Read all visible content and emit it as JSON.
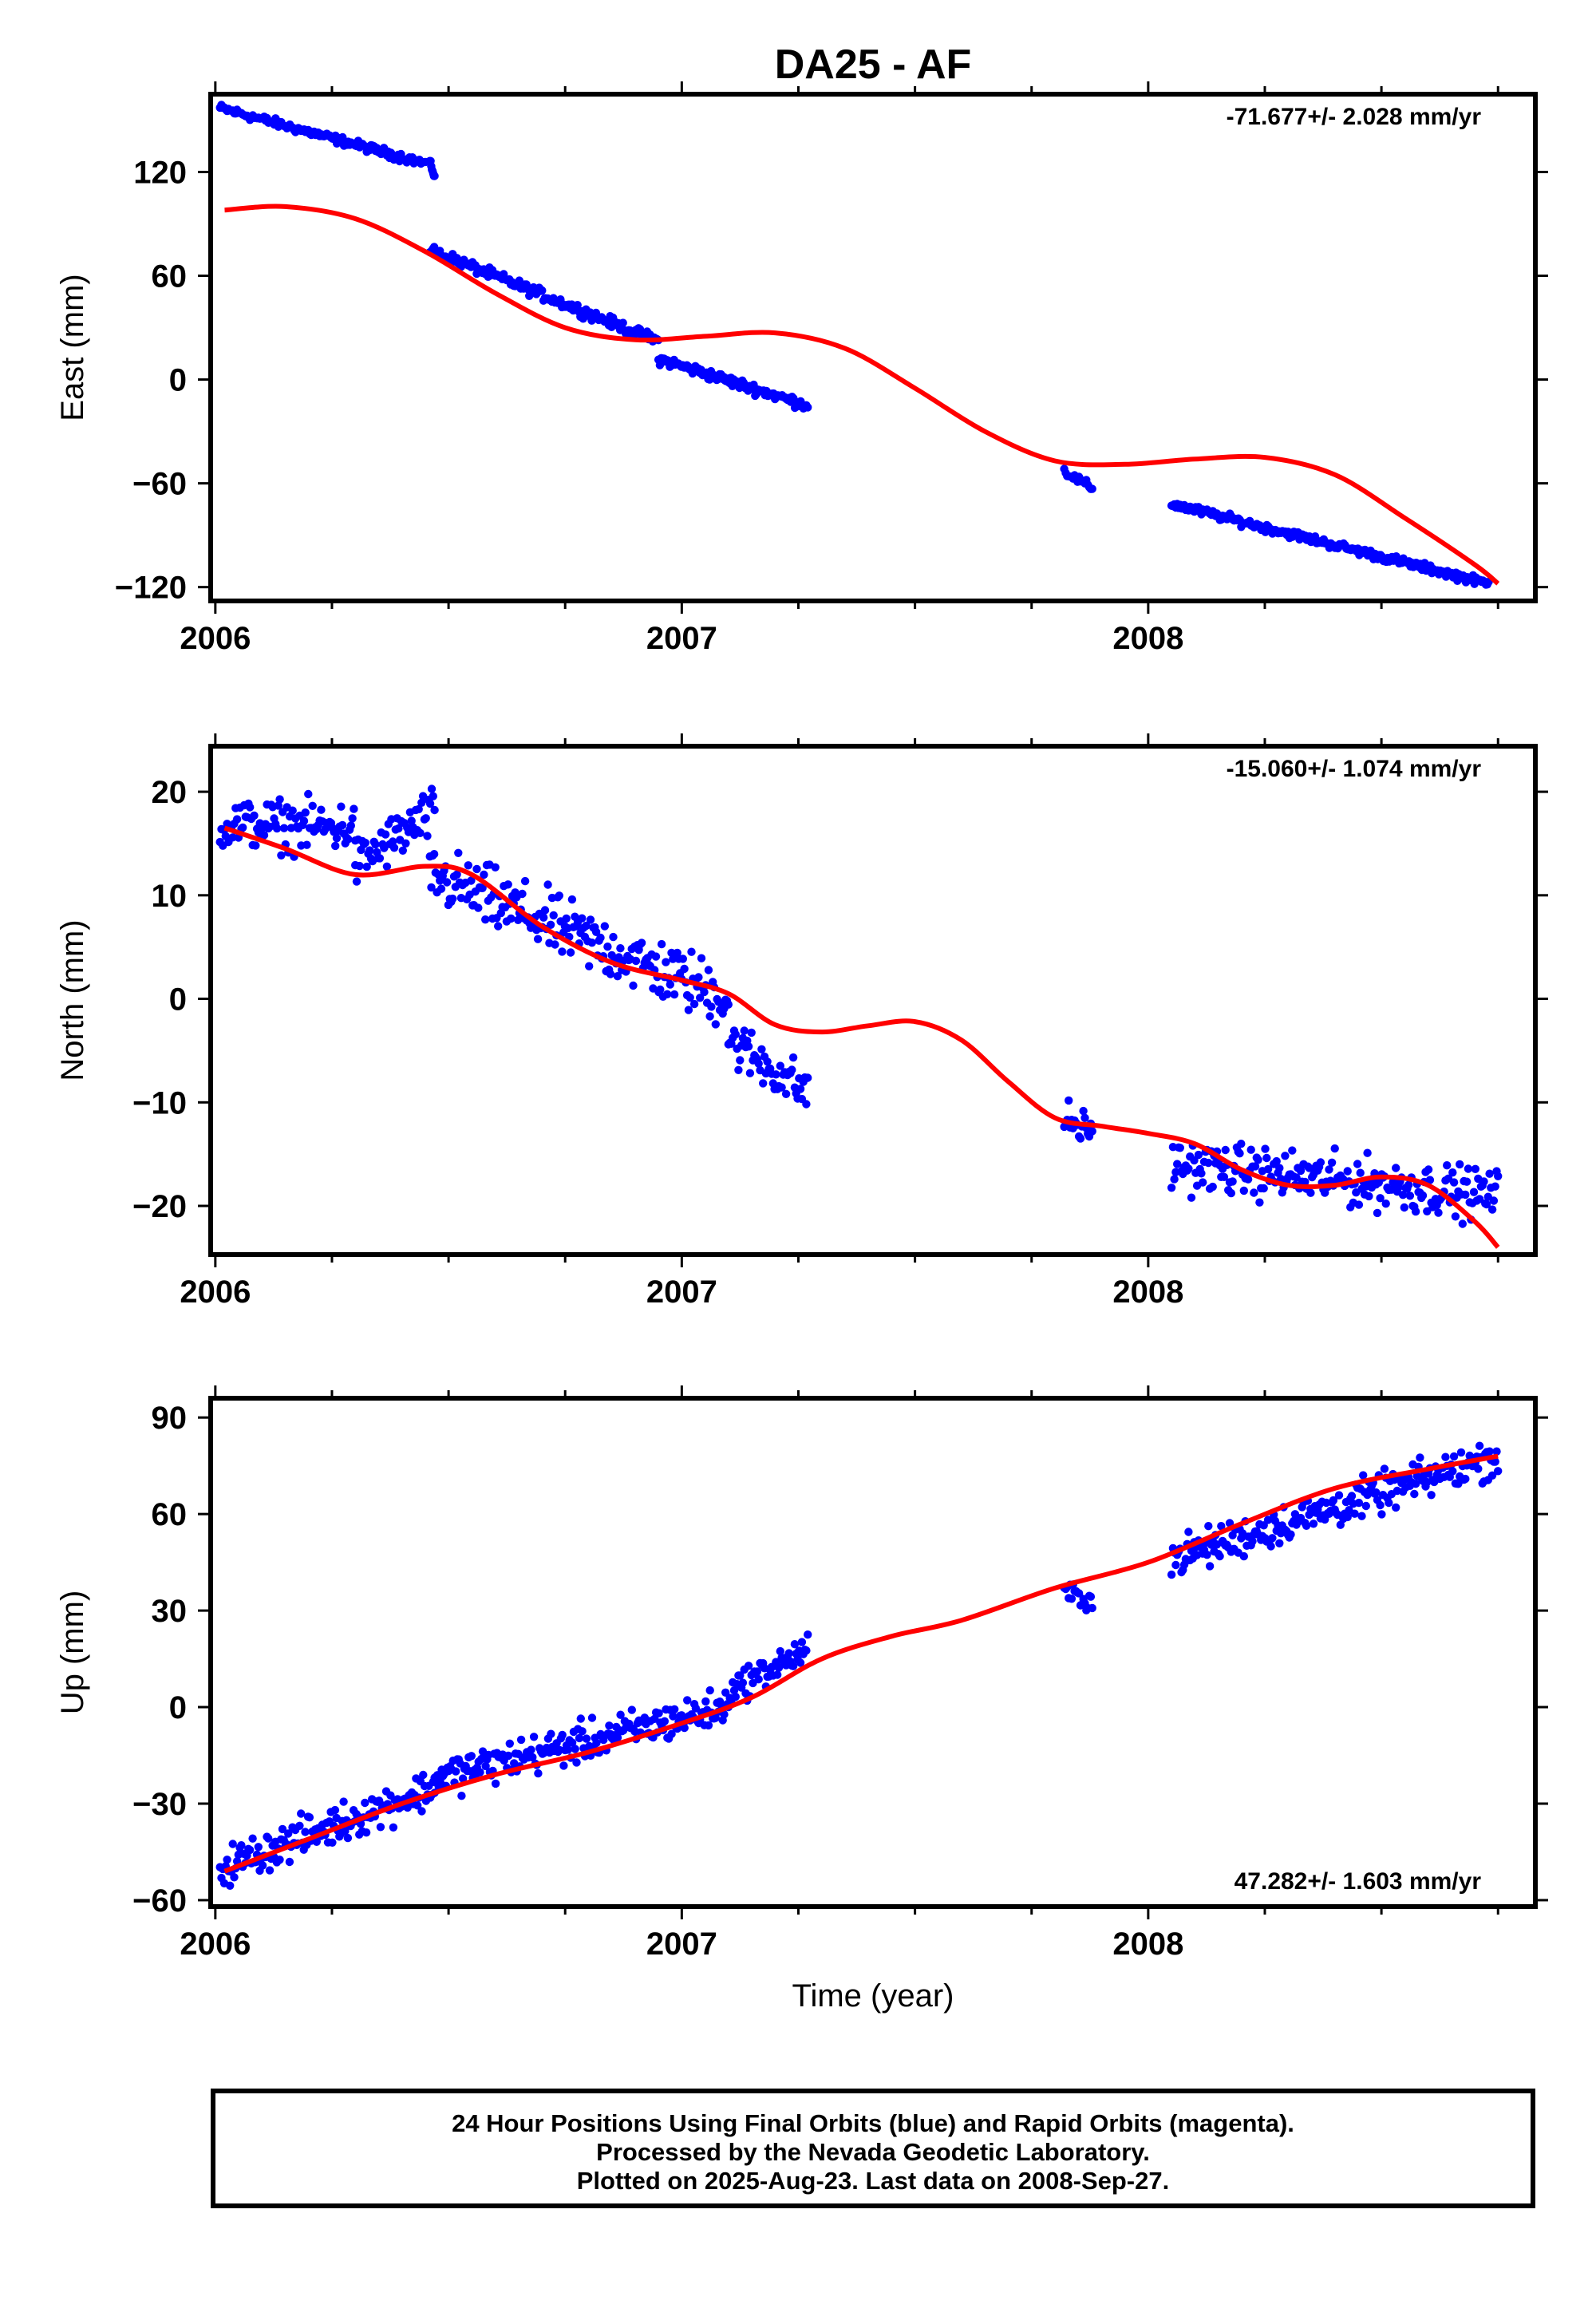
{
  "chart_data": {
    "title": "DA25 - AF",
    "type": "scatter",
    "x_ticks": [
      "2006",
      "2007",
      "2008"
    ],
    "xlabel": "Time (year)",
    "xlim": [
      2005.99,
      2008.83
    ],
    "colors": {
      "points": "#0000ff",
      "fit": "#ff0000"
    },
    "panels": [
      {
        "id": "east",
        "ylabel": "East (mm)",
        "ylim": [
          -128,
          165
        ],
        "yticks": [
          120,
          60,
          0,
          -60,
          -120
        ],
        "ytick_labels": [
          "120",
          "60",
          "0",
          "−60",
          "−120"
        ],
        "rate_text": "-71.677+/- 2.028 mm/yr",
        "rate_position": "top-right",
        "point_segments": [
          {
            "x": [
              2006.01,
              2006.45
            ],
            "y": [
              157,
              125
            ],
            "noise": 2
          },
          {
            "x": [
              2006.46,
              2006.47
            ],
            "y": [
              126,
              117
            ],
            "noise": 1
          },
          {
            "x": [
              2006.46,
              2006.95
            ],
            "y": [
              75,
              22
            ],
            "noise": 2.5
          },
          {
            "x": [
              2006.95,
              2007.27
            ],
            "y": [
              12,
              -15
            ],
            "noise": 2.5
          },
          {
            "x": [
              2007.82,
              2007.88
            ],
            "y": [
              -53,
              -63
            ],
            "noise": 2
          },
          {
            "x": [
              2008.05,
              2008.73
            ],
            "y": [
              -72,
              -118
            ],
            "noise": 2
          }
        ],
        "fit": {
          "x": [
            2006.02,
            2006.15,
            2006.3,
            2006.45,
            2006.6,
            2006.75,
            2006.9,
            2007.05,
            2007.2,
            2007.35,
            2007.5,
            2007.65,
            2007.8,
            2007.95,
            2008.1,
            2008.25,
            2008.4,
            2008.55,
            2008.7,
            2008.75
          ],
          "y": [
            98,
            100,
            93,
            74,
            50,
            30,
            23,
            25,
            27,
            18,
            -5,
            -30,
            -47,
            -49,
            -46,
            -45,
            -55,
            -80,
            -107,
            -118
          ]
        }
      },
      {
        "id": "north",
        "ylabel": "North (mm)",
        "ylim": [
          -24.7,
          24.4
        ],
        "yticks": [
          20,
          10,
          0,
          -10,
          -20
        ],
        "ytick_labels": [
          "20",
          "10",
          "0",
          "−10",
          "−20"
        ],
        "rate_text": "-15.060+/- 1.074 mm/yr",
        "rate_position": "top-right",
        "point_segments": [
          {
            "x": [
              2006.01,
              2006.3
            ],
            "y": [
              17,
              16.5
            ],
            "noise": 2
          },
          {
            "x": [
              2006.3,
              2006.47
            ],
            "y": [
              13,
              18
            ],
            "noise": 2
          },
          {
            "x": [
              2006.46,
              2007.1
            ],
            "y": [
              12,
              0
            ],
            "noise": 2.5
          },
          {
            "x": [
              2007.1,
              2007.27
            ],
            "y": [
              -4,
              -9
            ],
            "noise": 2
          },
          {
            "x": [
              2007.82,
              2007.88
            ],
            "y": [
              -11.5,
              -13
            ],
            "noise": 1.5
          },
          {
            "x": [
              2008.05,
              2008.75
            ],
            "y": [
              -16,
              -19
            ],
            "noise": 2
          }
        ],
        "fit": {
          "x": [
            2006.02,
            2006.15,
            2006.3,
            2006.45,
            2006.55,
            2006.7,
            2006.85,
            2007.0,
            2007.1,
            2007.2,
            2007.3,
            2007.4,
            2007.5,
            2007.6,
            2007.7,
            2007.8,
            2007.9,
            2008.0,
            2008.1,
            2008.2,
            2008.3,
            2008.4,
            2008.5,
            2008.6,
            2008.7,
            2008.75
          ],
          "y": [
            16.5,
            14.5,
            12,
            12.8,
            12,
            7,
            3.5,
            1.8,
            0.5,
            -2.5,
            -3.2,
            -2.6,
            -2.2,
            -4,
            -8,
            -11.5,
            -12.3,
            -13,
            -14,
            -16.5,
            -18,
            -18,
            -17.2,
            -18,
            -21.5,
            -24
          ]
        }
      },
      {
        "id": "up",
        "ylabel": "Up (mm)",
        "ylim": [
          -62,
          96
        ],
        "yticks": [
          90,
          60,
          30,
          0,
          -30,
          -60
        ],
        "ytick_labels": [
          "90",
          "60",
          "30",
          "0",
          "−30",
          "−60"
        ],
        "rate_text": "47.282+/- 1.603 mm/yr",
        "rate_position": "bottom-right",
        "point_segments": [
          {
            "x": [
              2006.01,
              2006.47
            ],
            "y": [
              -50,
              -25
            ],
            "noise": 5
          },
          {
            "x": [
              2006.47,
              2007.1
            ],
            "y": [
              -22,
              0
            ],
            "noise": 5
          },
          {
            "x": [
              2007.1,
              2007.27
            ],
            "y": [
              5,
              18
            ],
            "noise": 4
          },
          {
            "x": [
              2007.82,
              2007.88
            ],
            "y": [
              36,
              33
            ],
            "noise": 3
          },
          {
            "x": [
              2008.05,
              2008.75
            ],
            "y": [
              46,
              78
            ],
            "noise": 5
          }
        ],
        "fit": {
          "x": [
            2006.02,
            2006.2,
            2006.4,
            2006.6,
            2006.8,
            2007.0,
            2007.15,
            2007.3,
            2007.45,
            2007.6,
            2007.8,
            2008.0,
            2008.2,
            2008.4,
            2008.6,
            2008.75
          ],
          "y": [
            -51,
            -41,
            -30,
            -21,
            -14,
            -5,
            3,
            15,
            22,
            27,
            37,
            45,
            57,
            68,
            74,
            78
          ]
        }
      }
    ]
  },
  "footer": {
    "line1": "24 Hour Positions Using Final Orbits (blue) and Rapid Orbits (magenta).",
    "line2": "Processed by the Nevada Geodetic Laboratory.",
    "line3": "Plotted on 2025-Aug-23. Last data on 2008-Sep-27."
  }
}
